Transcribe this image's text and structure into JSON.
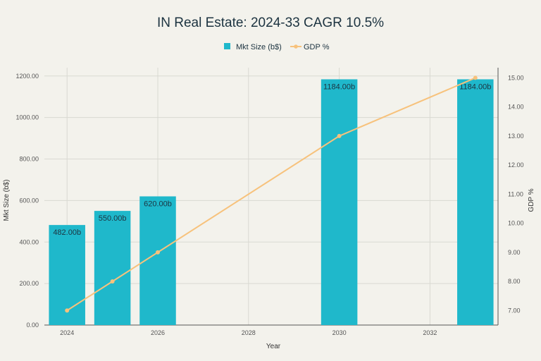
{
  "chart_data": {
    "type": "bar",
    "title": "IN Real Estate: 2024-33 CAGR 10.5%",
    "xlabel": "Year",
    "ylabel": "Mkt Size (b$)",
    "y2label": "GDP %",
    "x_ticks": [
      "2024",
      "2026",
      "2028",
      "2030",
      "2032"
    ],
    "y_ticks": [
      "0.00",
      "200.00",
      "400.00",
      "600.00",
      "800.00",
      "1000.00",
      "1200.00"
    ],
    "y2_ticks": [
      "7.00",
      "8.00",
      "9.00",
      "10.00",
      "11.00",
      "12.00",
      "13.00",
      "14.00",
      "15.00"
    ],
    "xlim": [
      2023.5,
      2033.5
    ],
    "ylim": [
      0,
      1240
    ],
    "y2lim": [
      6.5,
      15.35
    ],
    "grid": true,
    "legend_position": "top-center",
    "series": [
      {
        "name": "Mkt Size (b$)",
        "type": "bar",
        "color": "#1fb8cb",
        "x": [
          2024,
          2025,
          2026,
          2030,
          2033
        ],
        "values": [
          482.0,
          550.0,
          620.0,
          1184.0,
          1184.0
        ],
        "labels": [
          "482.00b",
          "550.00b",
          "620.00b",
          "1184.00b",
          "1184.00b"
        ]
      },
      {
        "name": "GDP %",
        "type": "line",
        "axis": "right",
        "color": "#f7c27c",
        "x": [
          2024,
          2025,
          2026,
          2030,
          2033
        ],
        "values": [
          7.0,
          8.0,
          9.0,
          13.0,
          15.0
        ]
      }
    ]
  }
}
